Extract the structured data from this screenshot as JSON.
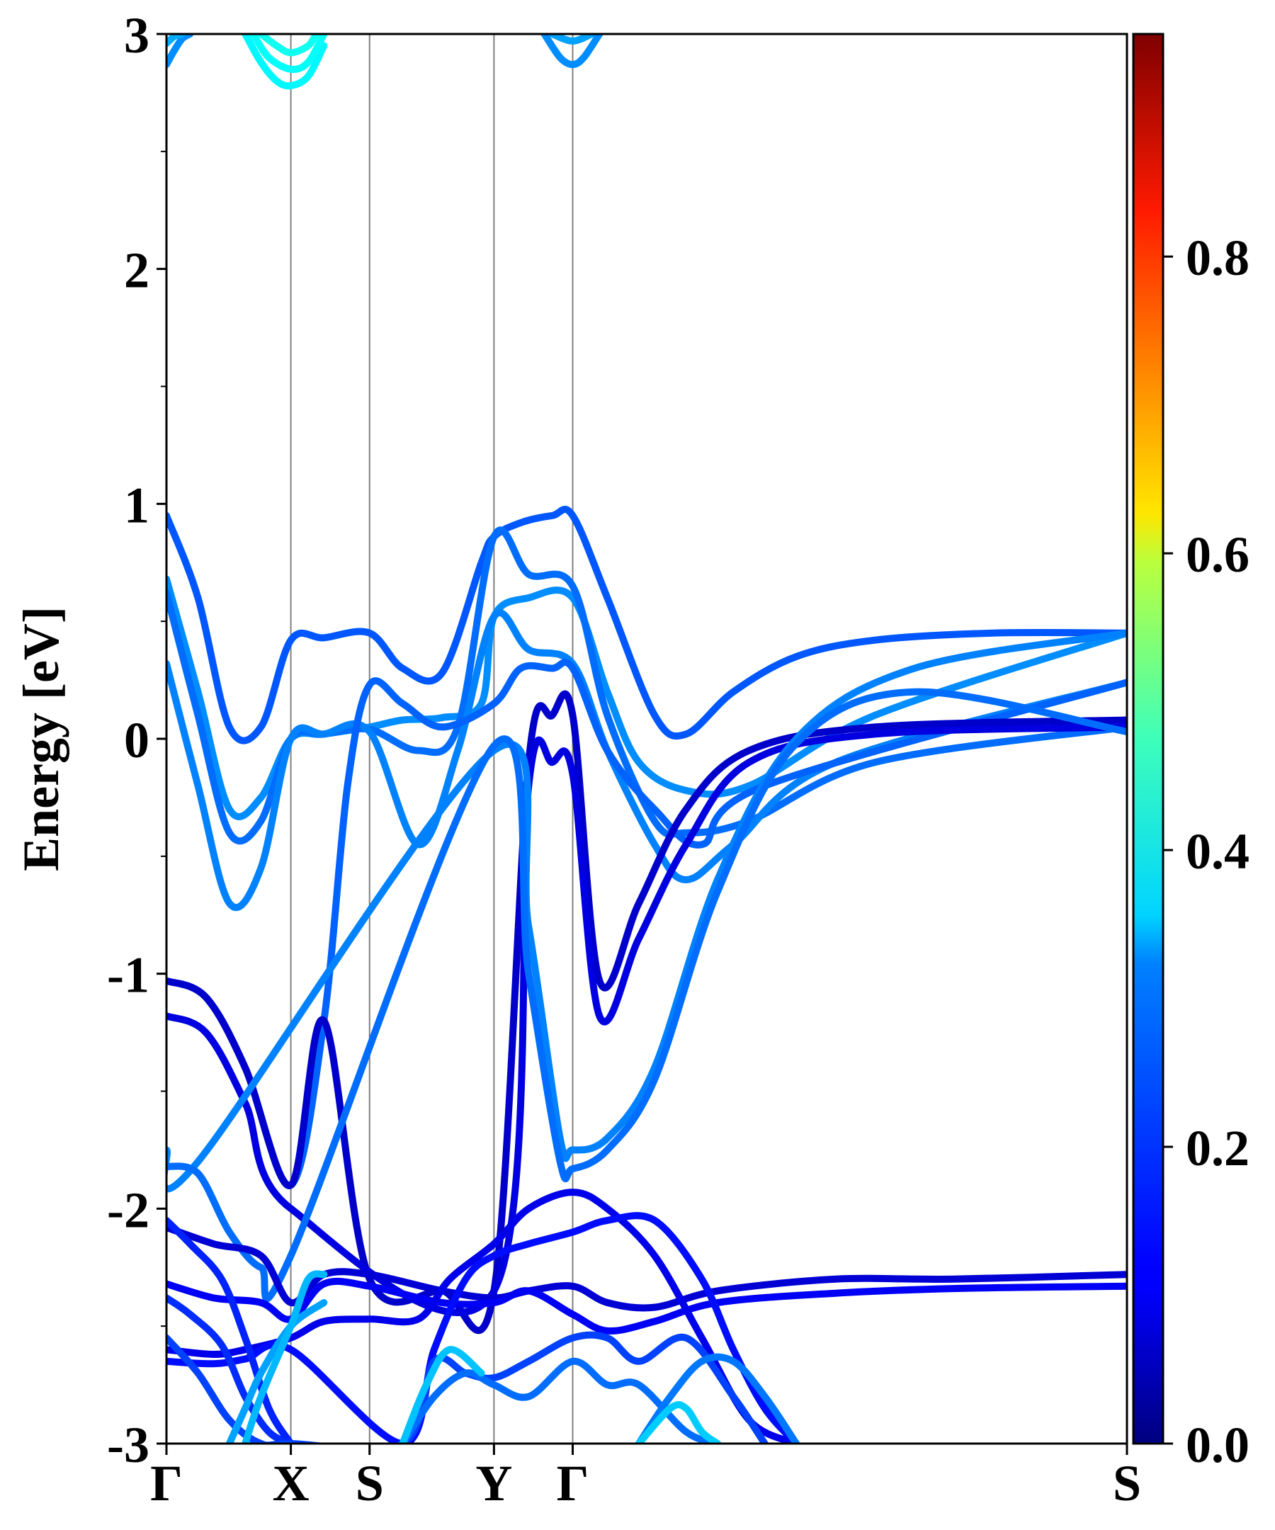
{
  "chart_data": {
    "type": "line",
    "title": "",
    "xlabel": "",
    "ylabel": "Energy [eV]",
    "ylim": [
      -3,
      3
    ],
    "yticks": [
      "-3",
      "-2",
      "-1",
      "0",
      "1",
      "2",
      "3"
    ],
    "kpath": {
      "labels": [
        "Γ",
        "X",
        "S",
        "Y",
        "Γ",
        "S"
      ],
      "positions": [
        0,
        1.58,
        2.58,
        4.16,
        5.16,
        12.2
      ]
    },
    "colorbar": {
      "colormap": "jet",
      "range": [
        0,
        0.95
      ],
      "ticks": [
        "0.0",
        "0.2",
        "0.4",
        "0.6",
        "0.8"
      ]
    },
    "series": [
      {
        "color": 0.2,
        "x": [
          0,
          0.4,
          0.8,
          1.2,
          1.58,
          2.0,
          2.58,
          3.0,
          3.5,
          4.0,
          4.16,
          4.5,
          4.9,
          5.16,
          5.6,
          6.2,
          6.6,
          7.2,
          8.0,
          9.0,
          10.5,
          12.2
        ],
        "y": [
          0.95,
          0.6,
          0.05,
          0.05,
          0.42,
          0.43,
          0.45,
          0.3,
          0.28,
          0.75,
          0.86,
          0.92,
          0.95,
          0.95,
          0.6,
          0.1,
          0.02,
          0.2,
          0.35,
          0.42,
          0.45,
          0.45
        ]
      },
      {
        "color": 0.25,
        "x": [
          0,
          0.4,
          0.8,
          1.2,
          1.58,
          2.0,
          2.58,
          3.0,
          3.5,
          4.0,
          4.16,
          4.6,
          5.16,
          5.6,
          6.0,
          6.6,
          7.4,
          9.0,
          12.2
        ],
        "y": [
          0.68,
          0.2,
          -0.3,
          -0.25,
          0.0,
          0.02,
          0.05,
          0.08,
          0.09,
          0.15,
          0.52,
          0.6,
          0.6,
          0.2,
          -0.1,
          -0.22,
          -0.2,
          0.1,
          0.45
        ]
      },
      {
        "color": 0.22,
        "x": [
          0,
          0.4,
          0.8,
          1.2,
          1.58,
          2.0,
          2.58,
          3.2,
          3.7,
          4.16,
          4.6,
          5.16,
          5.6,
          6.2,
          6.6,
          7.4,
          9.0,
          12.2
        ],
        "y": [
          0.62,
          0.1,
          -0.4,
          -0.35,
          0.0,
          0.02,
          0.04,
          -0.05,
          0.05,
          0.86,
          0.7,
          0.65,
          0.1,
          -0.35,
          -0.4,
          -0.35,
          -0.1,
          0.05
        ]
      },
      {
        "color": 0.24,
        "x": [
          0,
          0.4,
          0.8,
          1.2,
          1.58,
          2.0,
          2.58,
          3.2,
          3.7,
          4.16,
          4.6,
          5.16,
          5.6,
          6.2,
          6.6,
          7.2,
          8.5,
          12.2
        ],
        "y": [
          0.32,
          -0.2,
          -0.7,
          -0.55,
          0.0,
          0.02,
          0.03,
          -0.45,
          -0.05,
          0.52,
          0.38,
          0.32,
          -0.05,
          -0.45,
          -0.6,
          -0.45,
          -0.1,
          0.24
        ]
      },
      {
        "color": 0.21,
        "x": [
          0,
          0.5,
          1.0,
          1.58,
          2.0,
          2.3,
          2.58,
          3.0,
          3.5,
          4.16,
          4.5,
          4.9,
          5.16,
          5.6,
          6.2,
          6.8,
          7.6,
          12.2
        ],
        "y": [
          -1.03,
          -1.1,
          -1.4,
          -1.9,
          -1.2,
          -0.2,
          0.23,
          0.15,
          0.05,
          0.15,
          0.3,
          0.3,
          0.3,
          -0.05,
          -0.3,
          -0.45,
          -0.2,
          0.24
        ]
      },
      {
        "color": 0.07,
        "x": [
          0,
          0.5,
          1.0,
          1.58,
          2.0,
          2.58,
          3.5,
          4.16,
          4.6,
          4.9,
          5.16,
          5.5,
          6.0,
          6.6,
          7.4,
          9.0,
          12.2
        ],
        "y": [
          -1.03,
          -1.1,
          -1.4,
          -1.9,
          -1.2,
          -2.3,
          -2.35,
          -2.35,
          -0.1,
          0.1,
          0.1,
          -1.03,
          -0.7,
          -0.3,
          -0.05,
          0.05,
          0.08
        ]
      },
      {
        "color": 0.09,
        "x": [
          0,
          0.5,
          1.0,
          1.58,
          4.16,
          4.6,
          4.9,
          5.16,
          5.5,
          6.0,
          6.6,
          7.4,
          9.0,
          12.2
        ],
        "y": [
          -1.18,
          -1.25,
          -1.55,
          -2.0,
          -2.35,
          -0.2,
          -0.1,
          -0.15,
          -1.18,
          -0.85,
          -0.45,
          -0.1,
          0.02,
          0.05
        ]
      },
      {
        "color": 0.24,
        "x": [
          0,
          0.4,
          4.16,
          4.6,
          5.0,
          5.16,
          5.6,
          6.2,
          7.0,
          8.0,
          9.5,
          12.2
        ],
        "y": [
          -1.75,
          -1.8,
          -0.05,
          -0.8,
          -1.7,
          -1.75,
          -1.7,
          -1.4,
          -0.6,
          0.0,
          0.3,
          0.45
        ]
      },
      {
        "color": 0.22,
        "x": [
          0,
          0.4,
          0.8,
          1.2,
          1.58,
          4.16,
          4.6,
          5.0,
          5.16,
          5.6,
          6.2,
          7.0,
          8.0,
          9.5,
          12.2
        ],
        "y": [
          -1.82,
          -1.85,
          -2.1,
          -2.25,
          -2.2,
          -0.03,
          -1.0,
          -1.8,
          -1.83,
          -1.75,
          -1.45,
          -0.65,
          -0.02,
          0.2,
          0.03
        ]
      },
      {
        "color": 0.08,
        "x": [
          0,
          0.6,
          1.2,
          1.58,
          2.0,
          2.58,
          3.5,
          4.16,
          4.6,
          5.16,
          5.6,
          6.2,
          7.0,
          8.5,
          10.0,
          12.2
        ],
        "y": [
          -2.08,
          -2.15,
          -2.2,
          -2.4,
          -2.28,
          -2.28,
          -2.35,
          -2.38,
          -2.35,
          -2.33,
          -2.4,
          -2.42,
          -2.35,
          -2.3,
          -2.3,
          -2.28
        ]
      },
      {
        "color": 0.11,
        "x": [
          0,
          0.6,
          1.2,
          1.58,
          2.0,
          2.58,
          3.5,
          4.16,
          4.6,
          5.16,
          5.6,
          6.2,
          7.0,
          8.5,
          10.0,
          12.2
        ],
        "y": [
          -2.32,
          -2.38,
          -2.4,
          -2.47,
          -2.32,
          -2.33,
          -2.4,
          -2.4,
          -2.35,
          -2.45,
          -2.52,
          -2.48,
          -2.4,
          -2.36,
          -2.34,
          -2.33
        ]
      },
      {
        "color": 0.1,
        "x": [
          0,
          0.6,
          1.0,
          1.58,
          2.0,
          2.58,
          3.2,
          3.6,
          4.16,
          4.6,
          5.16,
          5.6,
          6.2,
          6.8,
          7.4,
          8.0
        ],
        "y": [
          -2.6,
          -2.62,
          -2.6,
          -2.55,
          -2.48,
          -2.47,
          -2.47,
          -2.3,
          -2.15,
          -2.0,
          -1.93,
          -2.0,
          -2.2,
          -2.55,
          -2.9,
          -3.0
        ]
      },
      {
        "color": 0.13,
        "x": [
          0,
          0.6,
          1.0,
          1.58,
          3.0,
          3.4,
          3.8,
          4.16,
          4.6,
          5.16,
          5.6,
          6.2,
          6.8,
          7.2,
          7.6,
          8.0
        ],
        "y": [
          -2.65,
          -2.66,
          -2.64,
          -2.6,
          -3.0,
          -2.6,
          -2.3,
          -2.2,
          -2.15,
          -2.1,
          -2.05,
          -2.05,
          -2.3,
          -2.6,
          -2.85,
          -3.0
        ]
      },
      {
        "color": 0.15,
        "x": [
          0,
          0.3,
          0.7,
          1.0,
          1.3,
          1.58
        ],
        "y": [
          -2.05,
          -2.15,
          -2.3,
          -2.55,
          -2.85,
          -3.0
        ]
      },
      {
        "color": 0.16,
        "x": [
          0,
          0.3,
          0.7,
          1.0,
          1.3,
          1.58
        ],
        "y": [
          -2.38,
          -2.45,
          -2.58,
          -2.8,
          -2.95,
          -3.0
        ]
      },
      {
        "color": 0.18,
        "x": [
          0,
          0.4,
          0.8,
          1.2,
          1.58,
          3.0,
          3.4,
          3.8,
          4.16,
          4.6,
          5.16,
          5.6,
          6.0,
          6.6,
          7.2,
          7.6
        ],
        "y": [
          -2.55,
          -2.7,
          -2.9,
          -3.0,
          -3.0,
          -3.0,
          -2.65,
          -2.7,
          -2.72,
          -2.65,
          -2.55,
          -2.55,
          -2.65,
          -2.55,
          -2.8,
          -3.0
        ]
      },
      {
        "color": 0.27,
        "x": [
          0.8,
          1.0,
          1.2,
          1.58,
          2.0
        ],
        "y": [
          -3.0,
          -2.85,
          -2.7,
          -2.5,
          -2.4
        ]
      },
      {
        "color": 0.29,
        "x": [
          1.0,
          1.2,
          1.58,
          1.8,
          2.0
        ],
        "y": [
          -3.0,
          -2.8,
          -2.5,
          -2.3,
          -2.28
        ]
      },
      {
        "color": 0.22,
        "x": [
          3.0,
          3.4,
          3.8,
          4.16,
          4.6,
          5.16,
          5.6,
          6.0,
          6.6,
          7.0
        ],
        "y": [
          -3.0,
          -2.8,
          -2.7,
          -2.75,
          -2.8,
          -2.65,
          -2.75,
          -2.75,
          -2.95,
          -3.0
        ]
      },
      {
        "color": 0.3,
        "x": [
          3.0,
          3.3,
          3.6,
          4.0
        ],
        "y": [
          -3.0,
          -2.75,
          -2.6,
          -2.7
        ]
      },
      {
        "color": 0.23,
        "x": [
          6.0,
          6.4,
          6.8,
          7.2,
          7.6,
          8.0
        ],
        "y": [
          -3.0,
          -2.8,
          -2.65,
          -2.65,
          -2.8,
          -3.0
        ]
      },
      {
        "color": 0.31,
        "x": [
          6.0,
          6.4,
          6.6,
          6.8,
          7.0
        ],
        "y": [
          -3.0,
          -2.85,
          -2.85,
          -2.95,
          -3.0
        ]
      },
      {
        "color": 0.25,
        "x": [
          0,
          0.1,
          0.2,
          0.3
        ],
        "y": [
          2.87,
          2.93,
          2.98,
          3.0
        ]
      },
      {
        "color": 0.28,
        "x": [
          0,
          0.1,
          0.2
        ],
        "y": [
          2.96,
          2.99,
          3.0
        ]
      },
      {
        "color": 0.35,
        "x": [
          1.0,
          1.2,
          1.4,
          1.58,
          1.8,
          2.0
        ],
        "y": [
          3.0,
          2.88,
          2.8,
          2.78,
          2.82,
          2.95
        ]
      },
      {
        "color": 0.36,
        "x": [
          1.1,
          1.3,
          1.58,
          1.8,
          2.0
        ],
        "y": [
          3.0,
          2.9,
          2.85,
          2.88,
          3.0
        ]
      },
      {
        "color": 0.37,
        "x": [
          1.2,
          1.4,
          1.58,
          1.8,
          1.9
        ],
        "y": [
          3.0,
          2.95,
          2.92,
          2.95,
          3.0
        ]
      },
      {
        "color": 0.25,
        "x": [
          4.8,
          5.0,
          5.16,
          5.3,
          5.5
        ],
        "y": [
          3.0,
          2.9,
          2.87,
          2.9,
          3.0
        ]
      },
      {
        "color": 0.27,
        "x": [
          4.9,
          5.16,
          5.4
        ],
        "y": [
          3.0,
          2.97,
          3.0
        ]
      }
    ]
  }
}
